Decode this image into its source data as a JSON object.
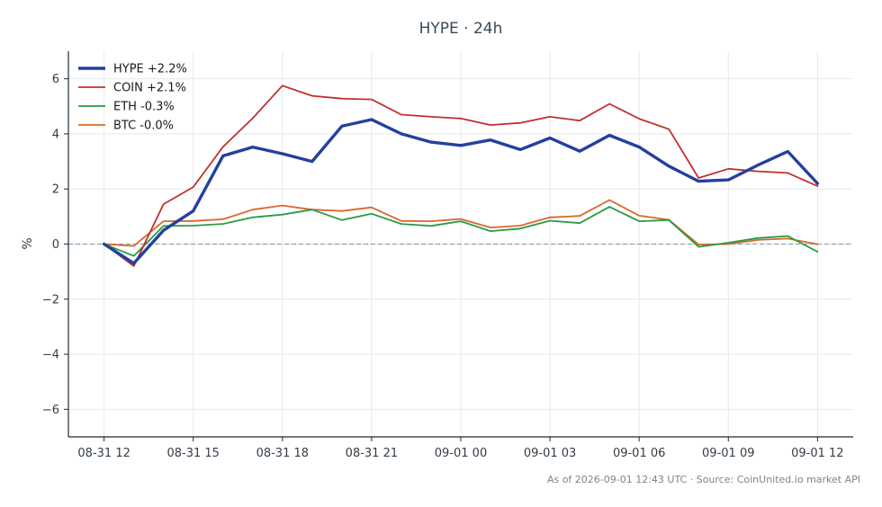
{
  "chart_data": {
    "type": "line",
    "title": "HYPE · 24h",
    "ylabel": "%",
    "xlabel": "",
    "ylim": [
      -7,
      7
    ],
    "yticks": [
      6,
      4,
      2,
      0,
      -2,
      -4,
      -6
    ],
    "ytick_labels": [
      "6",
      "4",
      "2",
      "0",
      "−2",
      "−4",
      "−6"
    ],
    "x_hours": [
      0,
      1,
      2,
      3,
      4,
      5,
      6,
      7,
      8,
      9,
      10,
      11,
      12,
      13,
      14,
      15,
      16,
      17,
      18,
      19,
      20,
      21,
      22,
      23,
      24
    ],
    "x_range_hours": [
      -1.2,
      25.2
    ],
    "xticks": [
      {
        "hour": 0,
        "label": "08-31 12"
      },
      {
        "hour": 3,
        "label": "08-31 15"
      },
      {
        "hour": 6,
        "label": "08-31 18"
      },
      {
        "hour": 9,
        "label": "08-31 21"
      },
      {
        "hour": 12,
        "label": "09-01 00"
      },
      {
        "hour": 15,
        "label": "09-01 03"
      },
      {
        "hour": 18,
        "label": "09-01 06"
      },
      {
        "hour": 21,
        "label": "09-01 09"
      },
      {
        "hour": 24,
        "label": "09-01 12"
      }
    ],
    "zero_line": true,
    "grid": true,
    "legend_position": "top-left",
    "series": [
      {
        "name": "HYPE +2.2%",
        "color": "#2340a0",
        "width": 3.4,
        "values": [
          0.0,
          -0.7,
          0.5,
          1.2,
          3.2,
          3.52,
          3.28,
          3.0,
          4.28,
          4.52,
          4.0,
          3.7,
          3.58,
          3.78,
          3.43,
          3.85,
          3.37,
          3.95,
          3.52,
          2.83,
          2.28,
          2.33,
          2.87,
          3.36,
          2.2
        ]
      },
      {
        "name": "COIN +2.1%",
        "color": "#c0302e",
        "width": 1.8,
        "values": [
          0.0,
          -0.8,
          1.45,
          2.07,
          3.53,
          4.57,
          5.75,
          5.38,
          5.28,
          5.25,
          4.7,
          4.62,
          4.56,
          4.32,
          4.4,
          4.62,
          4.48,
          5.09,
          4.55,
          4.17,
          2.4,
          2.73,
          2.64,
          2.58,
          2.1
        ]
      },
      {
        "name": "ETH -0.3%",
        "color": "#2a9a48",
        "width": 1.8,
        "values": [
          0.0,
          -0.43,
          0.66,
          0.67,
          0.73,
          0.97,
          1.07,
          1.25,
          0.87,
          1.1,
          0.73,
          0.66,
          0.83,
          0.47,
          0.56,
          0.85,
          0.76,
          1.35,
          0.83,
          0.87,
          -0.1,
          0.05,
          0.22,
          0.29,
          -0.28
        ]
      },
      {
        "name": "BTC -0.0%",
        "color": "#d9682a",
        "width": 1.8,
        "values": [
          0.0,
          -0.07,
          0.83,
          0.84,
          0.9,
          1.25,
          1.4,
          1.25,
          1.2,
          1.33,
          0.84,
          0.83,
          0.91,
          0.6,
          0.67,
          0.97,
          1.02,
          1.6,
          1.03,
          0.88,
          -0.02,
          0.0,
          0.15,
          0.2,
          -0.01
        ]
      }
    ]
  },
  "footer": "As of 2026-09-01 12:43 UTC · Source: CoinUnited.io market API",
  "colors": {
    "axis": "#1f2a36",
    "grid": "#e4e8ec",
    "zero_line": "#7e96aa",
    "title": "#3a4a5c"
  }
}
